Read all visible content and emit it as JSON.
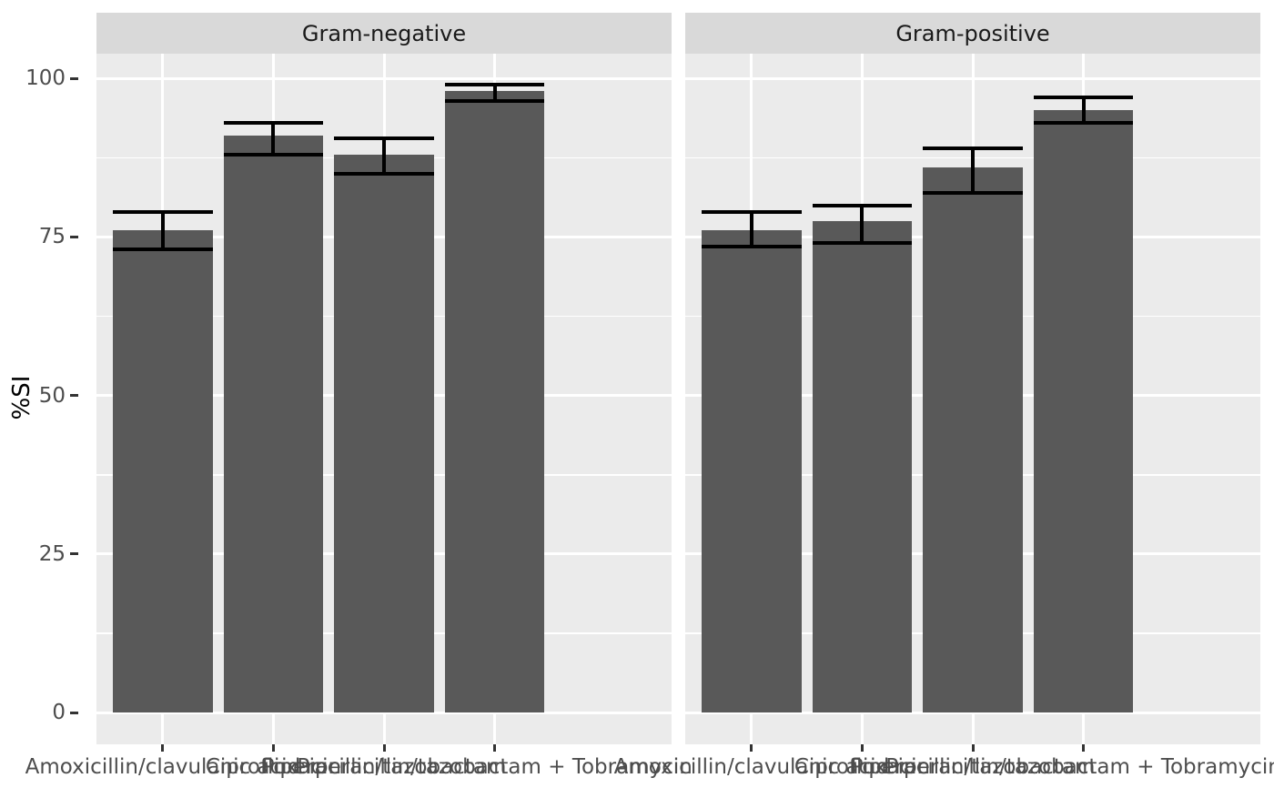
{
  "chart_data": {
    "type": "bar",
    "faceted": true,
    "facet_labels": [
      "Gram-negative",
      "Gram-positive"
    ],
    "categories": [
      "Amoxicillin/clavulanic acid",
      "Ciprofloxacin",
      "Piperacillin/tazobactam",
      "Piperacillin/tazobactam + Tobramycin"
    ],
    "ylabel": "%SI",
    "y_ticks": [
      0,
      25,
      50,
      75,
      100
    ],
    "y_minor_ticks": [
      12.5,
      37.5,
      62.5,
      87.5
    ],
    "ylim": [
      -5,
      103.9
    ],
    "grid": true,
    "legend": "none",
    "error_bars": true,
    "series": [
      {
        "facet": "Gram-negative",
        "values": [
          76,
          91,
          88,
          98
        ],
        "ci_lower": [
          73,
          88,
          85,
          96.5
        ],
        "ci_upper": [
          79,
          93,
          90.5,
          99
        ]
      },
      {
        "facet": "Gram-positive",
        "values": [
          76,
          77.5,
          86,
          95
        ],
        "ci_lower": [
          73.5,
          74,
          82,
          93
        ],
        "ci_upper": [
          79,
          80,
          89,
          97
        ]
      }
    ]
  },
  "colors": {
    "bar_fill": "#595959",
    "error_bar": "#000000",
    "panel_bg": "#EBEBEB",
    "strip_bg": "#D9D9D9",
    "grid_line": "#FFFFFF",
    "axis_text": "#4D4D4D",
    "strip_text": "#1A1A1A",
    "tick_mark": "#333333",
    "axis_title": "#000000",
    "background": "#FFFFFF"
  }
}
